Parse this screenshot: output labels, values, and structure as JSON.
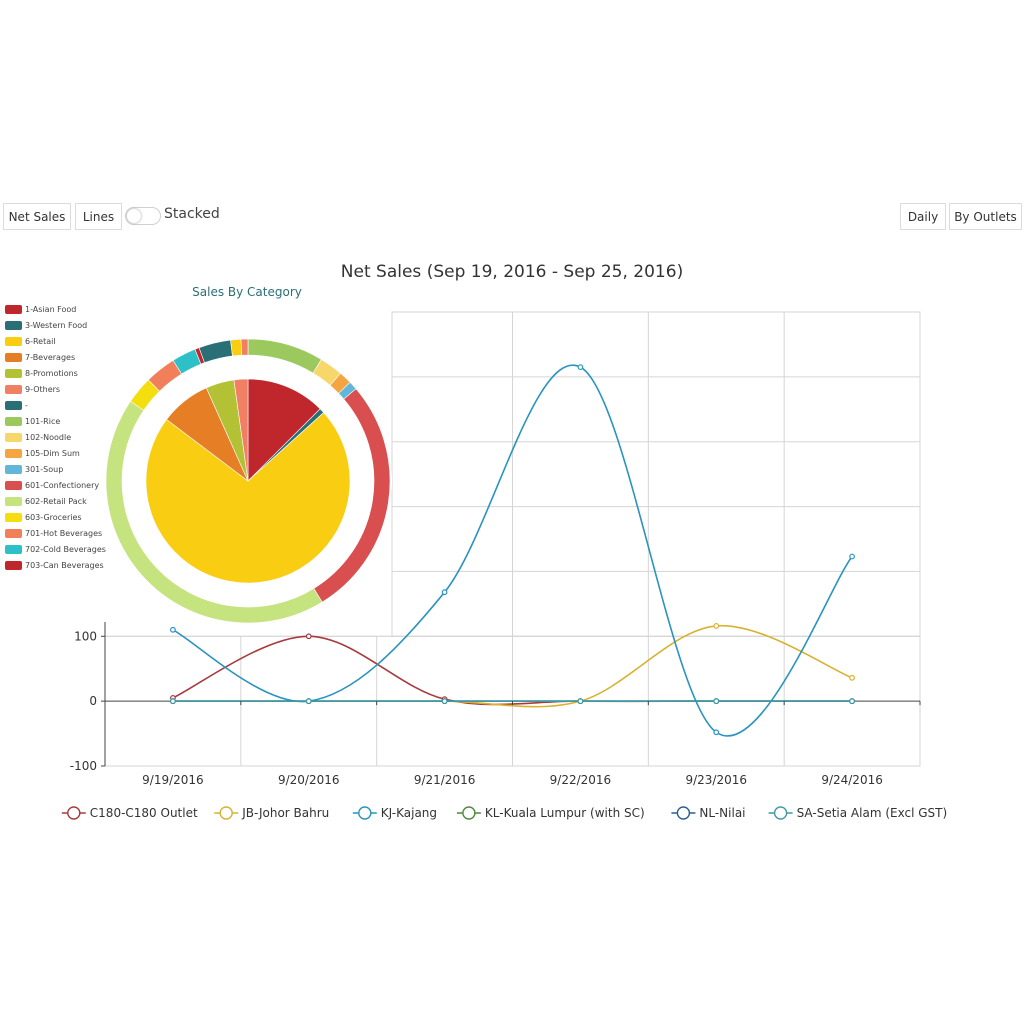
{
  "toolbar": {
    "net_sales_label": "Net Sales",
    "lines_label": "Lines",
    "stacked_label": "Stacked",
    "daily_label": "Daily",
    "by_outlets_label": "By Outlets"
  },
  "chart_data": [
    {
      "type": "line",
      "title": "Net Sales (Sep 19, 2016 - Sep 25, 2016)",
      "xlabel": "",
      "ylabel": "",
      "categories": [
        "9/19/2016",
        "9/20/2016",
        "9/21/2016",
        "9/22/2016",
        "9/23/2016",
        "9/24/2016"
      ],
      "y_ticks": [
        -100,
        0,
        100
      ],
      "y_tick_labels": [
        "-100",
        "0",
        "100"
      ],
      "ylim": [
        -100,
        600
      ],
      "grid": true,
      "legend_position": "bottom",
      "series": [
        {
          "name": "C180-C180 Outlet",
          "color": "#a83a3e",
          "values": [
            5,
            100,
            3,
            0,
            0,
            0
          ]
        },
        {
          "name": "JB-Johor Bahru",
          "color": "#d8b22f",
          "values": [
            0,
            0,
            0,
            0,
            116,
            36
          ]
        },
        {
          "name": "KJ-Kajang",
          "color": "#2a93bf",
          "values": [
            110,
            0,
            168,
            515,
            -48,
            223
          ]
        },
        {
          "name": "KL-Kuala Lumpur (with SC)",
          "color": "#4d8a3a",
          "values": [
            0,
            0,
            0,
            0,
            0,
            0
          ]
        },
        {
          "name": "NL-Nilai",
          "color": "#2c5e8f",
          "values": [
            0,
            0,
            0,
            0,
            0,
            0
          ]
        },
        {
          "name": "SA-Setia Alam (Excl GST)",
          "color": "#3f9aa6",
          "values": [
            0,
            0,
            0,
            0,
            0,
            0
          ]
        }
      ]
    },
    {
      "type": "pie",
      "title": "Sales By Category",
      "categories": [
        {
          "name": "1-Asian Food",
          "color": "#c0272d"
        },
        {
          "name": "3-Western Food",
          "color": "#2a6f76"
        },
        {
          "name": "6-Retail",
          "color": "#f9cd12"
        },
        {
          "name": "7-Beverages",
          "color": "#e57e25"
        },
        {
          "name": "8-Promotions",
          "color": "#b3c234"
        },
        {
          "name": "9-Others",
          "color": "#f07f63"
        },
        {
          "name": "-",
          "color": "#2a6f76"
        },
        {
          "name": "101-Rice",
          "color": "#9cc95e"
        },
        {
          "name": "102-Noodle",
          "color": "#f7d76a"
        },
        {
          "name": "105-Dim Sum",
          "color": "#f2a540"
        },
        {
          "name": "301-Soup",
          "color": "#62b6d8"
        },
        {
          "name": "601-Confectionery",
          "color": "#d94f4f"
        },
        {
          "name": "602-Retail Pack",
          "color": "#c5e37f"
        },
        {
          "name": "603-Groceries",
          "color": "#f4de10"
        },
        {
          "name": "701-Hot Beverages",
          "color": "#f07f5a"
        },
        {
          "name": "702-Cold Beverages",
          "color": "#2dc1c7"
        },
        {
          "name": "703-Can Beverages",
          "color": "#c0272d"
        }
      ],
      "inner_values": [
        {
          "name": "1-Asian Food",
          "value": 12.5
        },
        {
          "name": "3-Western Food",
          "value": 0.8
        },
        {
          "name": "6-Retail",
          "value": 72
        },
        {
          "name": "7-Beverages",
          "value": 8
        },
        {
          "name": "8-Promotions",
          "value": 4.5
        },
        {
          "name": "9-Others",
          "value": 2.2
        }
      ],
      "outer_values": [
        {
          "name": "101-Rice",
          "value": 8.8
        },
        {
          "name": "102-Noodle",
          "value": 2.7
        },
        {
          "name": "105-Dim Sum",
          "value": 1.5
        },
        {
          "name": "301-Soup",
          "value": 1.0
        },
        {
          "name": "601-Confectionery",
          "value": 28
        },
        {
          "name": "602-Retail Pack",
          "value": 44
        },
        {
          "name": "603-Groceries",
          "value": 3.2
        },
        {
          "name": "701-Hot Beverages",
          "value": 3.6
        },
        {
          "name": "702-Cold Beverages",
          "value": 2.8
        },
        {
          "name": "703-Can Beverages",
          "value": 0.5
        },
        {
          "name": "-",
          "value": 3.7
        },
        {
          "name": "6-Retail",
          "value": 1.2
        },
        {
          "name": "9-Others",
          "value": 0.8
        }
      ]
    }
  ]
}
